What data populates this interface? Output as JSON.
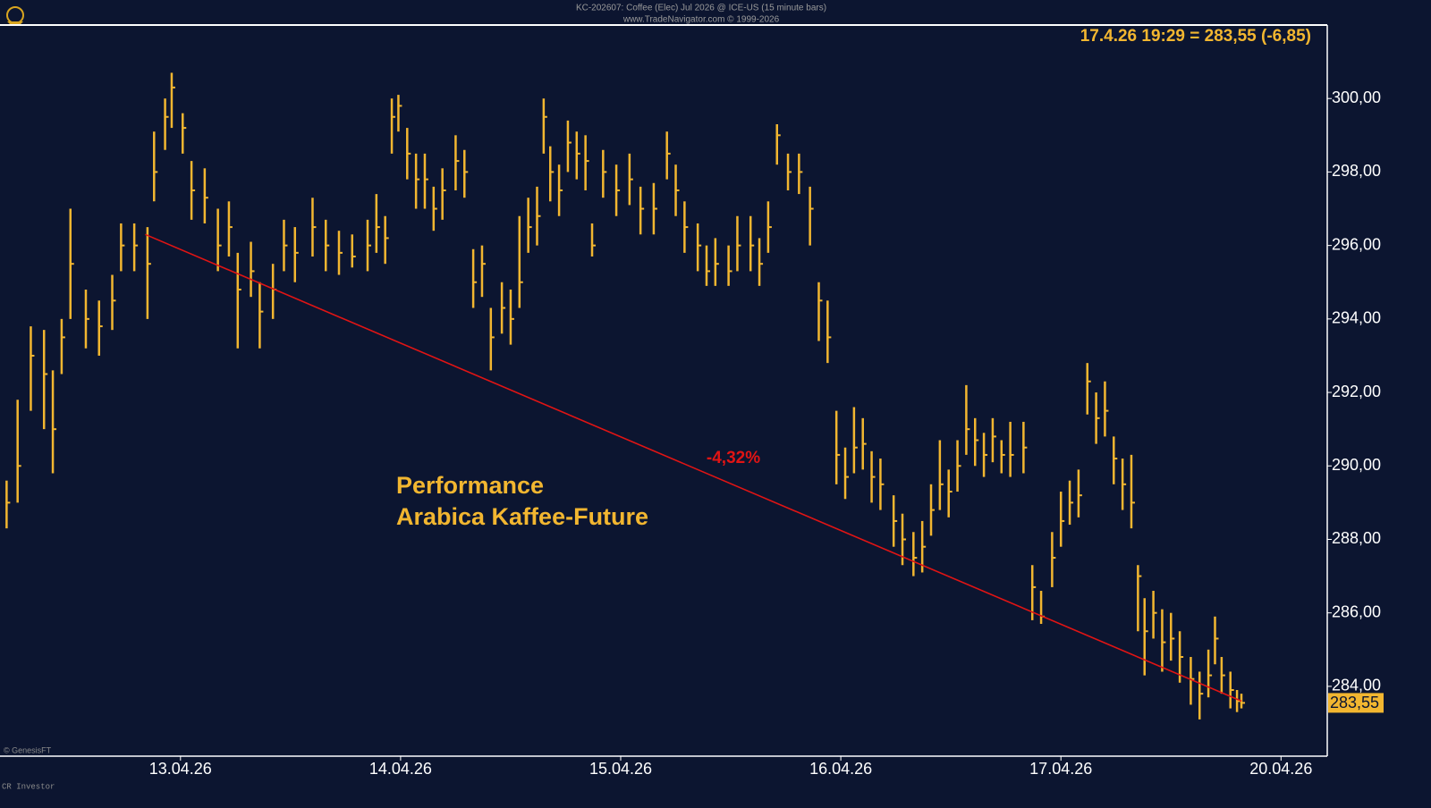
{
  "chart_data": {
    "type": "hlc",
    "header": "KC-202607: Coffee (Elec) Jul 2026 @ ICE-US  (15 minute bars)",
    "source": "www.TradeNavigator.com © 1999-2026",
    "quote": "17.4.26 19:29 = 283,55 (-6,85)",
    "title": "Performance",
    "subtitle": "Arabica Kaffee-Future",
    "credit_left": "© GenesisFT",
    "credit_bottom": "CR Investor",
    "color": "#f2b630",
    "background": "#0c1530",
    "xlim": [
      -0.82,
      5.21
    ],
    "ylim": [
      282.1,
      302
    ],
    "xticks": [
      {
        "value": 0,
        "label": "13.04.26"
      },
      {
        "value": 1,
        "label": "14.04.26"
      },
      {
        "value": 2,
        "label": "15.04.26"
      },
      {
        "value": 3,
        "label": "16.04.26"
      },
      {
        "value": 4,
        "label": "17.04.26"
      },
      {
        "value": 5,
        "label": "20.04.26"
      }
    ],
    "yticks": [
      {
        "value": 284,
        "label": "284,00"
      },
      {
        "value": 286,
        "label": "286,00"
      },
      {
        "value": 288,
        "label": "288,00"
      },
      {
        "value": 290,
        "label": "290,00"
      },
      {
        "value": 292,
        "label": "292,00"
      },
      {
        "value": 294,
        "label": "294,00"
      },
      {
        "value": 296,
        "label": "296,00"
      },
      {
        "value": 298,
        "label": "298,00"
      },
      {
        "value": 300,
        "label": "300,00"
      }
    ],
    "last_price": {
      "value": 283.55,
      "label": "283,55"
    },
    "trendline": {
      "x": [
        -0.16,
        4.82
      ],
      "y": [
        296.3,
        283.6
      ],
      "color": "#e01414",
      "label": "-4,32%"
    },
    "x": [
      -0.79,
      -0.74,
      -0.68,
      -0.62,
      -0.58,
      -0.54,
      -0.5,
      -0.43,
      -0.37,
      -0.31,
      -0.27,
      -0.21,
      -0.15,
      -0.12,
      -0.07,
      -0.04,
      0.01,
      0.05,
      0.11,
      0.17,
      0.22,
      0.26,
      0.32,
      0.36,
      0.42,
      0.47,
      0.52,
      0.6,
      0.66,
      0.72,
      0.78,
      0.85,
      0.89,
      0.93,
      0.96,
      0.99,
      1.03,
      1.07,
      1.11,
      1.15,
      1.19,
      1.25,
      1.29,
      1.33,
      1.37,
      1.41,
      1.46,
      1.5,
      1.54,
      1.58,
      1.62,
      1.65,
      1.68,
      1.72,
      1.76,
      1.8,
      1.84,
      1.87,
      1.92,
      1.98,
      2.04,
      2.09,
      2.15,
      2.21,
      2.25,
      2.29,
      2.35,
      2.39,
      2.43,
      2.49,
      2.53,
      2.59,
      2.63,
      2.67,
      2.71,
      2.76,
      2.81,
      2.86,
      2.9,
      2.94,
      2.98,
      3.02,
      3.06,
      3.1,
      3.14,
      3.18,
      3.24,
      3.28,
      3.33,
      3.37,
      3.41,
      3.45,
      3.49,
      3.53,
      3.57,
      3.61,
      3.65,
      3.69,
      3.73,
      3.77,
      3.83,
      3.87,
      3.91,
      3.96,
      4.0,
      4.04,
      4.08,
      4.12,
      4.16,
      4.2,
      4.24,
      4.28,
      4.32,
      4.35,
      4.38,
      4.42,
      4.46,
      4.5,
      4.54,
      4.59,
      4.63,
      4.67,
      4.7,
      4.73,
      4.77,
      4.8,
      4.82
    ],
    "high": [
      289.6,
      291.8,
      293.8,
      293.7,
      292.6,
      294,
      297,
      294.8,
      294.5,
      295.2,
      296.6,
      296.6,
      296.5,
      299.1,
      300,
      300.7,
      299.6,
      298.3,
      298.1,
      297,
      297.2,
      295.8,
      296.1,
      295,
      295.5,
      296.7,
      296.5,
      297.3,
      296.7,
      296.4,
      296.3,
      296.7,
      297.4,
      296.8,
      300,
      300.1,
      299.2,
      298.5,
      298.5,
      297.6,
      298.1,
      299,
      298.6,
      295.9,
      296,
      294.3,
      295,
      294.8,
      296.8,
      297.3,
      297.6,
      300,
      298.7,
      298.2,
      299.4,
      299.1,
      299,
      296.6,
      298.6,
      298.2,
      298.5,
      297.6,
      297.7,
      299.1,
      298.2,
      297.2,
      296.6,
      296,
      296.2,
      296,
      296.8,
      296.8,
      296.2,
      297.2,
      299.3,
      298.5,
      298.5,
      297.6,
      295,
      294.5,
      291.5,
      290.5,
      291.6,
      291.3,
      290.4,
      290.2,
      289.2,
      288.7,
      288.2,
      288.5,
      289.5,
      290.7,
      289.9,
      290.7,
      292.2,
      291.3,
      290.9,
      291.3,
      290.7,
      291.2,
      291.2,
      287.3,
      286.6,
      288.2,
      289.3,
      289.6,
      289.9,
      292.8,
      292,
      292.3,
      290.8,
      290.2,
      290.3,
      287.3,
      286.4,
      286.6,
      286.1,
      286,
      285.5,
      284.8,
      284.4,
      285,
      285.9,
      284.8,
      284.4,
      283.9,
      283.8
    ],
    "low": [
      288.3,
      289,
      291.5,
      291,
      289.8,
      292.5,
      294,
      293.2,
      293,
      293.7,
      295.3,
      295.3,
      294,
      297.2,
      298.6,
      299.2,
      298.5,
      296.7,
      296.6,
      295.3,
      295.7,
      293.2,
      294.6,
      293.2,
      294,
      295.3,
      295,
      295.7,
      295.3,
      295.2,
      295.4,
      295.3,
      295.8,
      295.5,
      298.5,
      299.1,
      297.8,
      297,
      297,
      296.4,
      296.7,
      297.5,
      297.3,
      294.3,
      294.6,
      292.6,
      293.6,
      293.3,
      294.3,
      295.8,
      296,
      298.5,
      297.2,
      296.8,
      298,
      297.8,
      297.5,
      295.7,
      297.3,
      296.8,
      297.1,
      296.3,
      296.3,
      297.8,
      296.8,
      295.8,
      295.3,
      294.9,
      294.9,
      294.9,
      295.3,
      295.3,
      294.9,
      295.8,
      298.2,
      297.5,
      297.4,
      296,
      293.4,
      292.8,
      289.5,
      289.1,
      289.8,
      289.9,
      289,
      288.8,
      287.8,
      287.3,
      287,
      287.1,
      288.1,
      288.8,
      288.6,
      289.3,
      290.3,
      290,
      289.7,
      290.1,
      289.8,
      289.7,
      289.8,
      285.8,
      285.7,
      286.7,
      287.8,
      288.4,
      288.6,
      291.4,
      290.6,
      290.8,
      289.5,
      288.8,
      288.3,
      285.5,
      284.3,
      285.3,
      284.4,
      284.7,
      284.1,
      283.5,
      283.1,
      283.7,
      284.6,
      283.8,
      283.4,
      283.3,
      283.4
    ],
    "close": [
      289,
      290,
      293,
      292.5,
      291,
      293.5,
      295.5,
      294,
      293.8,
      294.5,
      296,
      296,
      295.5,
      298,
      299.5,
      300.3,
      299.2,
      297.5,
      297.3,
      296,
      296.5,
      294.8,
      295.3,
      294.2,
      294.8,
      296,
      295.8,
      296.5,
      296,
      295.8,
      295.7,
      296,
      296.5,
      296.2,
      299.5,
      299.8,
      298.5,
      297.8,
      297.8,
      297,
      297.5,
      298.3,
      298,
      295,
      295.5,
      293.5,
      294.3,
      294,
      295,
      296.5,
      296.8,
      299.5,
      298,
      297.5,
      298.8,
      298.5,
      298.3,
      296,
      298,
      297.5,
      297.8,
      297,
      297,
      298.5,
      297.5,
      296.5,
      296,
      295.3,
      295.5,
      295.3,
      296,
      296,
      295.5,
      296.5,
      299,
      298,
      298,
      297,
      294.5,
      293.5,
      290.3,
      289.7,
      290.5,
      290.6,
      289.7,
      289.5,
      288.5,
      288,
      287.5,
      287.8,
      288.8,
      289.5,
      289.3,
      290,
      291,
      290.7,
      290.3,
      290.8,
      290.3,
      290.3,
      290.5,
      286.7,
      285.9,
      287.5,
      288.5,
      289,
      289.2,
      292.3,
      291.3,
      291.5,
      290.2,
      289.5,
      289,
      287,
      285.5,
      286,
      285.2,
      285.3,
      284.8,
      284.2,
      283.8,
      284.3,
      285.3,
      284.3,
      283.9,
      283.6,
      283.55
    ]
  }
}
